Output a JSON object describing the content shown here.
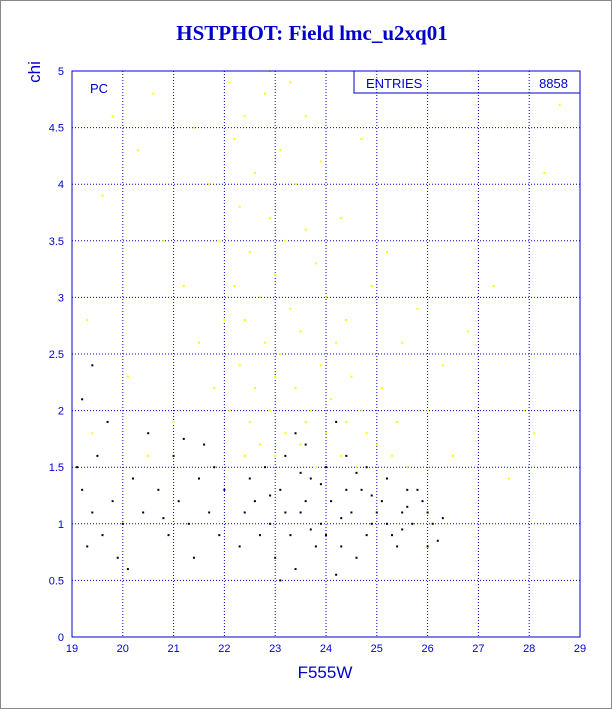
{
  "chart_data": {
    "type": "scatter",
    "title": "HSTPHOT: Field lmc_u2xq01",
    "x_label": "F555W",
    "y_label": "chi",
    "annotation": "PC",
    "stats_label": "ENTRIES",
    "stats_value": 8858,
    "xlim": [
      19,
      29
    ],
    "ylim": [
      0,
      5
    ],
    "xticks": [
      19,
      20,
      21,
      22,
      23,
      24,
      25,
      26,
      27,
      28,
      29
    ],
    "yticks": [
      0,
      0.5,
      1,
      1.5,
      2,
      2.5,
      3,
      3.5,
      4,
      4.5,
      5
    ],
    "grid": true,
    "series": [
      {
        "color": "#ffff00",
        "x": [
          22.1,
          22.4,
          22.8,
          23.1,
          22.6,
          23.4,
          22.3,
          22.9,
          23.2,
          23.6,
          22.5,
          23.0,
          23.8,
          22.2,
          22.7,
          23.3,
          24.0,
          22.4,
          23.5,
          24.2,
          22.8,
          23.1,
          23.9,
          22.3,
          24.5,
          22.6,
          23.4,
          24.1,
          22.9,
          23.7,
          24.4,
          22.5,
          23.2,
          24.0,
          24.8,
          22.7,
          23.5,
          24.3,
          25.0,
          23.0,
          23.8,
          24.6,
          25.3,
          22.4,
          25.6,
          21.5,
          21.2,
          20.8,
          21.7,
          20.3,
          19.6,
          19.3,
          20.1,
          21.0,
          21.8,
          19.8,
          20.6,
          21.4,
          24.7,
          25.2,
          25.8,
          26.3,
          26.8,
          27.3,
          27.9,
          28.3,
          28.6,
          27.6,
          28.1,
          26.5,
          26.0,
          25.5,
          24.9,
          24.3,
          23.9,
          23.6,
          22.9,
          22.0,
          21.9,
          22.2,
          23.3,
          24.4,
          25.1,
          23.6,
          24.7,
          25.4,
          23.0,
          22.1,
          20.5,
          19.4
        ],
        "values": [
          4.9,
          4.6,
          4.8,
          4.3,
          4.1,
          4.0,
          3.8,
          3.7,
          3.5,
          3.6,
          3.4,
          3.2,
          3.3,
          3.1,
          3.0,
          2.9,
          3.0,
          2.8,
          2.7,
          2.6,
          2.6,
          2.5,
          2.4,
          2.4,
          2.3,
          2.2,
          2.2,
          2.1,
          2.0,
          2.0,
          1.9,
          1.9,
          1.8,
          1.8,
          1.8,
          1.7,
          1.7,
          1.6,
          1.7,
          1.6,
          1.5,
          1.5,
          1.6,
          1.6,
          1.5,
          2.6,
          3.1,
          3.5,
          4.0,
          4.3,
          3.9,
          2.8,
          2.3,
          1.9,
          2.2,
          4.6,
          4.8,
          4.5,
          4.4,
          3.4,
          2.9,
          2.4,
          2.7,
          3.1,
          2.0,
          4.1,
          4.7,
          1.4,
          1.8,
          1.6,
          2.0,
          2.6,
          3.1,
          3.7,
          4.2,
          4.6,
          5.0,
          2.8,
          3.5,
          4.4,
          4.9,
          2.8,
          2.2,
          1.9,
          2.0,
          1.9,
          2.3,
          2.0,
          1.6,
          1.8
        ]
      },
      {
        "color": "#000000",
        "x": [
          22.6,
          22.9,
          23.1,
          23.3,
          23.5,
          23.7,
          23.9,
          24.1,
          24.3,
          24.5,
          24.7,
          24.9,
          25.1,
          25.3,
          25.5,
          25.7,
          25.9,
          26.1,
          26.3,
          22.8,
          23.2,
          23.6,
          24.0,
          24.4,
          24.8,
          25.2,
          25.6,
          23.4,
          24.2,
          23.0,
          23.8,
          24.6,
          25.4,
          26.0,
          22.7,
          22.5,
          23.2,
          24.0,
          24.4,
          25.0,
          25.8,
          26.2,
          23.6,
          24.8,
          25.6,
          23.9,
          24.6,
          22.9,
          25.2,
          26.0,
          23.4,
          24.2,
          23.1,
          22.4,
          22.3,
          23.7,
          24.9,
          25.5,
          24.3,
          23.5,
          19.2,
          19.4,
          19.6,
          19.8,
          20.0,
          20.2,
          19.5,
          19.3,
          20.4,
          20.7,
          20.9,
          21.1,
          21.3,
          21.5,
          21.7,
          21.9,
          20.5,
          21.0,
          21.6,
          19.7,
          19.1,
          21.4,
          20.1,
          19.9,
          21.8,
          19.4,
          19.2,
          21.2,
          20.8,
          22.0
        ],
        "values": [
          1.2,
          1.0,
          1.3,
          0.9,
          1.1,
          1.4,
          1.0,
          1.2,
          0.8,
          1.1,
          1.3,
          1.0,
          1.2,
          0.9,
          1.1,
          1.0,
          1.2,
          1.0,
          1.05,
          1.5,
          1.6,
          1.7,
          1.5,
          1.6,
          1.5,
          1.4,
          1.3,
          1.8,
          1.9,
          0.7,
          0.8,
          0.7,
          0.8,
          0.8,
          0.9,
          1.4,
          1.1,
          0.9,
          1.3,
          1.1,
          1.3,
          0.85,
          1.2,
          0.9,
          1.15,
          1.35,
          1.45,
          1.25,
          1.0,
          1.1,
          0.6,
          0.55,
          0.5,
          1.1,
          0.8,
          0.95,
          1.25,
          0.95,
          1.05,
          1.45,
          1.3,
          1.1,
          0.9,
          1.2,
          1.0,
          1.4,
          1.6,
          0.8,
          1.1,
          1.3,
          0.9,
          1.2,
          1.0,
          1.4,
          1.1,
          0.9,
          1.8,
          1.6,
          1.7,
          1.9,
          1.5,
          0.7,
          0.6,
          0.7,
          1.5,
          2.4,
          2.1,
          1.75,
          1.05,
          1.3
        ]
      }
    ]
  }
}
